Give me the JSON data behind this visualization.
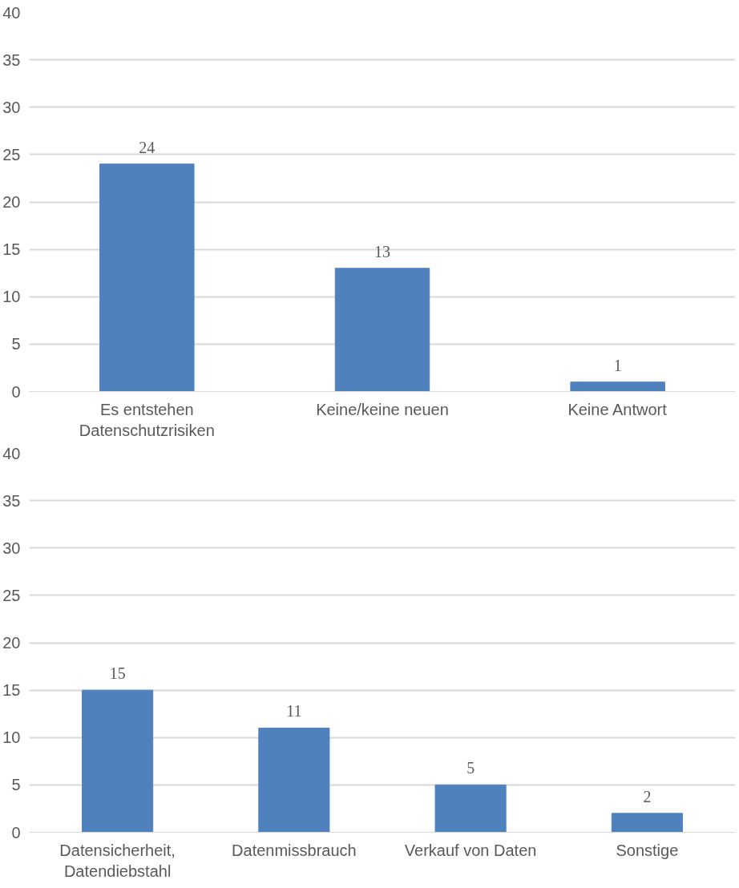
{
  "chart_data": [
    {
      "type": "bar",
      "categories": [
        "Es entstehen Datenschutzrisiken",
        "Keine/keine neuen",
        "Keine Antwort"
      ],
      "values": [
        24,
        13,
        1
      ],
      "color": "#4f81bd",
      "ylim": [
        0,
        40
      ],
      "yticks": [
        0,
        5,
        10,
        15,
        20,
        25,
        30,
        35,
        40
      ],
      "grid": "y",
      "data_labels": true
    },
    {
      "type": "bar",
      "categories": [
        "Datensicherheit, Datendiebstahl",
        "Datenmissbrauch",
        "Verkauf von Daten",
        "Sonstige"
      ],
      "values": [
        15,
        11,
        5,
        2
      ],
      "color": "#4f81bd",
      "ylim": [
        0,
        40
      ],
      "yticks": [
        0,
        5,
        10,
        15,
        20,
        25,
        30,
        35,
        40
      ],
      "grid": "y",
      "data_labels": true
    }
  ]
}
